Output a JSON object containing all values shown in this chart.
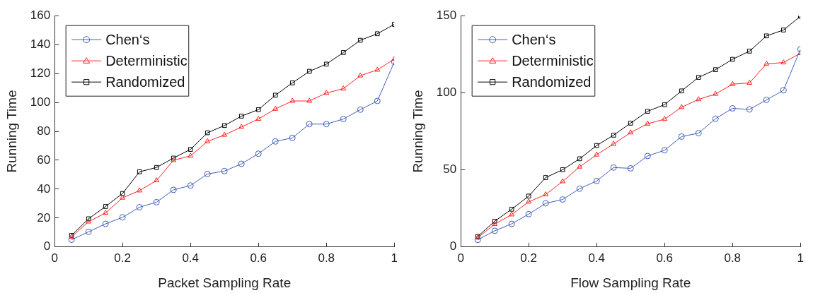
{
  "chart_data": [
    {
      "type": "line",
      "xlabel": "Packet Sampling Rate",
      "ylabel": "Running Time",
      "x": [
        0.05,
        0.1,
        0.15,
        0.2,
        0.25,
        0.3,
        0.35,
        0.4,
        0.45,
        0.5,
        0.55,
        0.6,
        0.65,
        0.7,
        0.75,
        0.8,
        0.85,
        0.9,
        0.95,
        1
      ],
      "series": [
        {
          "name": "Chen‘s",
          "color": "#3f5fb5",
          "marker": "circle",
          "values": [
            5,
            10.5,
            16,
            20.5,
            27.5,
            31,
            39.5,
            42.5,
            50.5,
            52.5,
            57.5,
            64.5,
            73,
            75.5,
            85,
            85,
            88.5,
            95,
            101,
            128
          ]
        },
        {
          "name": "Deterministic",
          "color": "#ff2020",
          "marker": "triangle",
          "values": [
            7,
            17.5,
            23.5,
            34,
            39,
            46,
            60,
            63,
            73,
            77.5,
            83,
            88.5,
            95.5,
            101,
            101,
            106.5,
            109.5,
            118.5,
            122.5,
            130
          ]
        },
        {
          "name": "Randomized",
          "color": "#000000",
          "marker": "square",
          "values": [
            8,
            19.5,
            28,
            37,
            52,
            55,
            61.5,
            67.5,
            79,
            84,
            90.5,
            95,
            105,
            113.5,
            121.5,
            126.5,
            134.5,
            143,
            147.5,
            154
          ]
        }
      ],
      "xlim": [
        0,
        1
      ],
      "xticks": [
        0,
        0.2,
        0.4,
        0.6,
        0.8,
        1
      ],
      "ylim": [
        0,
        160
      ],
      "yticks": [
        0,
        20,
        40,
        60,
        80,
        100,
        120,
        140,
        160
      ],
      "grid": false,
      "legend": "top left"
    },
    {
      "type": "line",
      "xlabel": "Flow Sampling Rate",
      "ylabel": "Running Time",
      "x": [
        0.05,
        0.1,
        0.15,
        0.2,
        0.25,
        0.3,
        0.35,
        0.4,
        0.45,
        0.5,
        0.55,
        0.6,
        0.65,
        0.7,
        0.75,
        0.8,
        0.85,
        0.9,
        0.95,
        1
      ],
      "series": [
        {
          "name": "Chen‘s",
          "color": "#3f5fb5",
          "marker": "circle",
          "values": [
            4.6,
            10.5,
            15,
            21.3,
            28.3,
            30.8,
            37.8,
            42.8,
            51.5,
            51,
            59,
            62.7,
            71.6,
            73.8,
            83.2,
            89.9,
            89.2,
            95.4,
            101.6,
            128.2
          ]
        },
        {
          "name": "Deterministic",
          "color": "#ff2020",
          "marker": "triangle",
          "values": [
            6,
            14.8,
            21,
            29.3,
            34,
            42.5,
            52,
            59.8,
            66.8,
            74.2,
            79.9,
            82.9,
            90.6,
            95.7,
            99.2,
            105.6,
            106.4,
            118.8,
            119.6,
            125.6
          ]
        },
        {
          "name": "Randomized",
          "color": "#000000",
          "marker": "square",
          "values": [
            6.8,
            16.7,
            24.5,
            33,
            45,
            50.1,
            57.2,
            65.8,
            72.5,
            80.3,
            88,
            92.3,
            101.2,
            110,
            115,
            121.7,
            127,
            136.9,
            140.7,
            149.6
          ]
        }
      ],
      "xlim": [
        0,
        1
      ],
      "xticks": [
        0,
        0.2,
        0.4,
        0.6,
        0.8,
        1
      ],
      "ylim": [
        0,
        150
      ],
      "yticks": [
        0,
        50,
        100,
        150
      ],
      "grid": false,
      "legend": "top left"
    }
  ]
}
